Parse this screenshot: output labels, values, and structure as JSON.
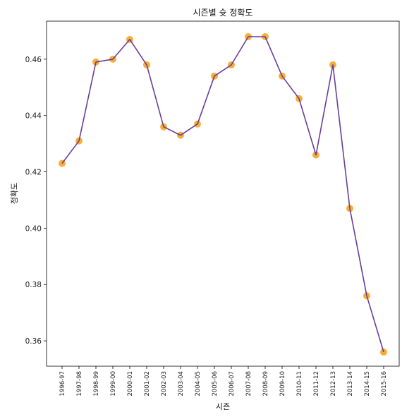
{
  "chart_data": {
    "type": "line",
    "title": "시즌별 슛 정확도",
    "xlabel": "시즌",
    "ylabel": "정확도",
    "categories": [
      "1996-97",
      "1997-98",
      "1998-99",
      "1999-00",
      "2000-01",
      "2001-02",
      "2002-03",
      "2003-04",
      "2004-05",
      "2005-06",
      "2006-07",
      "2007-08",
      "2008-09",
      "2009-10",
      "2010-11",
      "2011-12",
      "2012-13",
      "2013-14",
      "2014-15",
      "2015-16"
    ],
    "values": [
      0.423,
      0.431,
      0.459,
      0.46,
      0.467,
      0.458,
      0.436,
      0.433,
      0.437,
      0.454,
      0.458,
      0.468,
      0.468,
      0.454,
      0.446,
      0.426,
      0.458,
      0.407,
      0.376,
      0.356
    ],
    "ylim": [
      0.351,
      0.4735
    ],
    "yticks": [
      0.36,
      0.38,
      0.4,
      0.42,
      0.44,
      0.46
    ],
    "ytick_labels": [
      "0.36",
      "0.38",
      "0.40",
      "0.42",
      "0.44",
      "0.46"
    ],
    "grid": false,
    "line_color": "#6a3d9a",
    "marker_color": "#f5a623"
  }
}
